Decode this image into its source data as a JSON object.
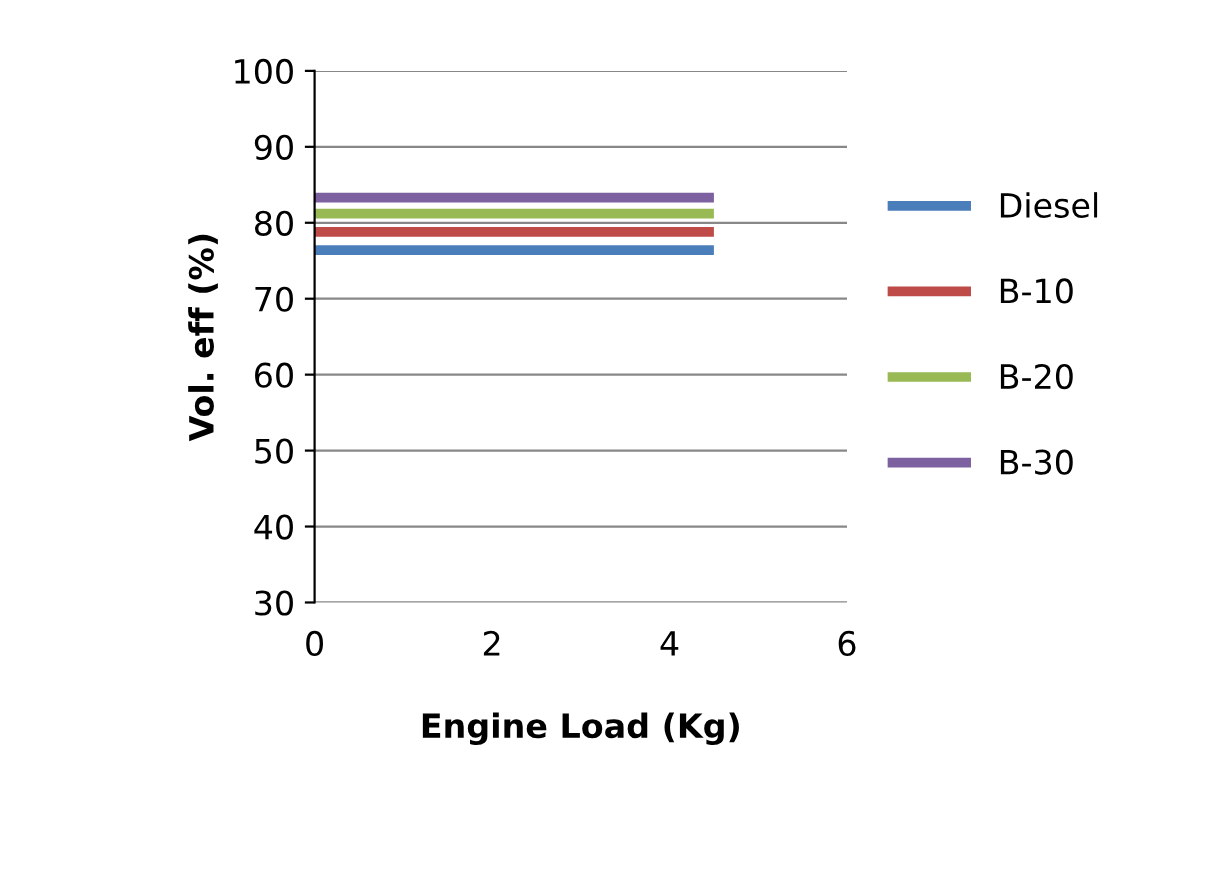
{
  "chart_data": {
    "type": "line",
    "xlabel": "Engine Load (Kg)",
    "ylabel": "Vol. eff (%)",
    "x": [
      0,
      4.5
    ],
    "series": [
      {
        "name": "Diesel",
        "color": "#4a7ebb",
        "values": [
          76.4,
          76.4
        ]
      },
      {
        "name": "B-10",
        "color": "#be4b48",
        "values": [
          78.8,
          78.8
        ]
      },
      {
        "name": "B-20",
        "color": "#98b954",
        "values": [
          81.2,
          81.2
        ]
      },
      {
        "name": "B-30",
        "color": "#7d60a0",
        "values": [
          83.3,
          83.3
        ]
      }
    ],
    "xlim": [
      0,
      6
    ],
    "xticks": [
      0,
      2,
      4,
      6
    ],
    "ylim": [
      30,
      100
    ],
    "yticks": [
      30,
      40,
      50,
      60,
      70,
      80,
      90,
      100
    ],
    "grid": "y",
    "legend": "right",
    "marker": "none",
    "line_style": "solid"
  }
}
